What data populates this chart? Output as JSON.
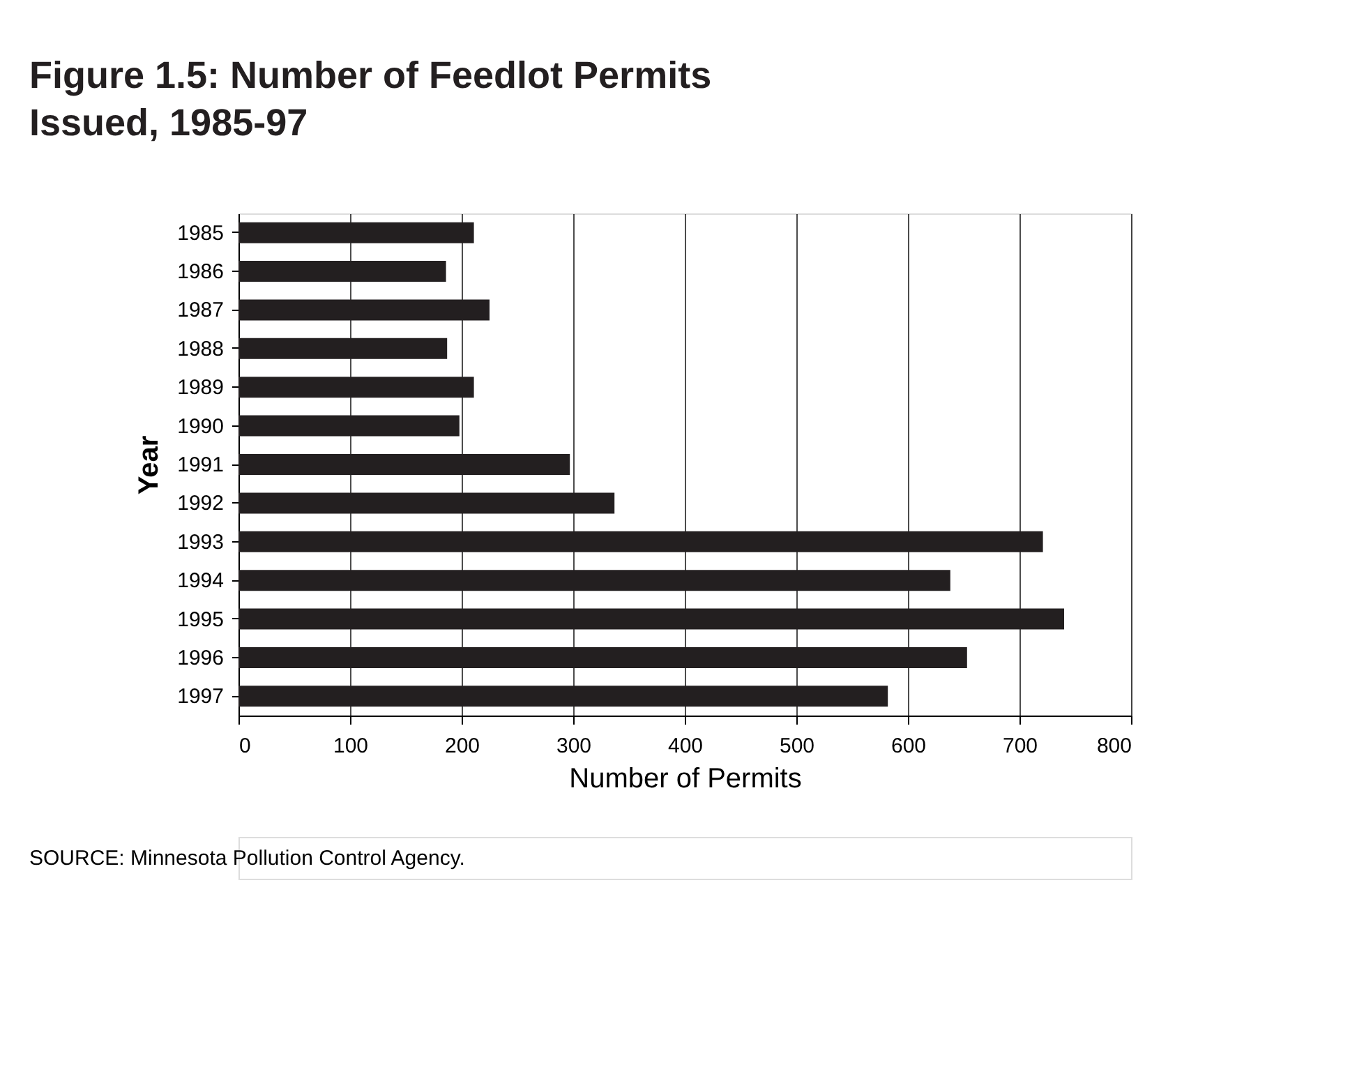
{
  "chart_data": {
    "type": "bar",
    "orientation": "horizontal",
    "title": "Figure 1.5:  Number of Feedlot Permits Issued, 1985-97",
    "categories": [
      "1985",
      "1986",
      "1987",
      "1988",
      "1989",
      "1990",
      "1991",
      "1992",
      "1993",
      "1994",
      "1995",
      "1996",
      "1997"
    ],
    "values": [
      211,
      186,
      225,
      187,
      211,
      198,
      297,
      337,
      721,
      638,
      740,
      653,
      582
    ],
    "color": "#231f20",
    "xlabel": "Number of Permits",
    "ylabel": "Year",
    "xlim": [
      0,
      800
    ],
    "xticks": [
      0,
      100,
      200,
      300,
      400,
      500,
      600,
      700,
      800
    ],
    "grid": "x",
    "annotations": [
      "SOURCE:  Minnesota Pollution Control Agency."
    ]
  }
}
